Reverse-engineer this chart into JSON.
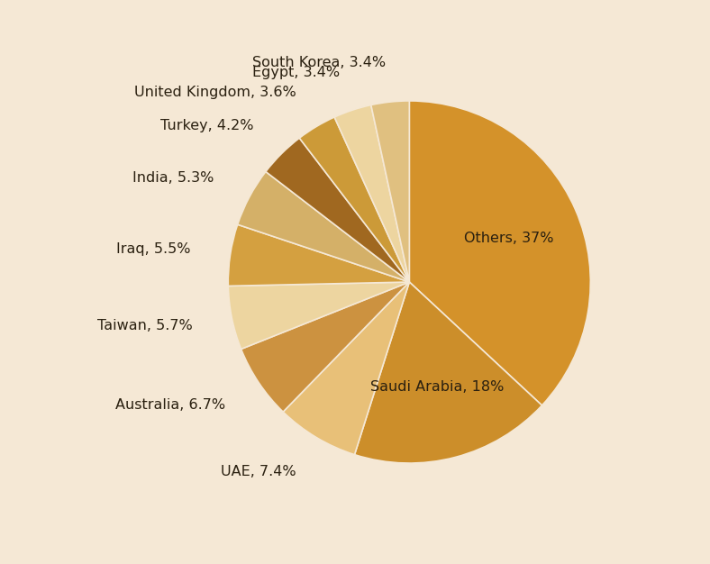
{
  "labels": [
    "Others",
    "Saudi Arabia",
    "UAE",
    "Australia",
    "Taiwan",
    "Iraq",
    "India",
    "Turkey",
    "United Kingdom",
    "Egypt",
    "South Korea"
  ],
  "values": [
    37,
    18,
    7.4,
    6.7,
    5.7,
    5.5,
    5.3,
    4.2,
    3.6,
    3.4,
    3.4
  ],
  "colors": [
    "#D4922A",
    "#CC8E2A",
    "#E8C078",
    "#CC9240",
    "#EDD5A0",
    "#D4A040",
    "#D4B068",
    "#A06820",
    "#CC9A38",
    "#EDD5A0",
    "#E0C080"
  ],
  "label_display": [
    "Others, 37%",
    "Saudi Arabia, 18%",
    "UAE, 7.4%",
    "Australia, 6.7%",
    "Taiwan, 5.7%",
    "Iraq, 5.5%",
    "India, 5.3%",
    "Turkey, 4.2%",
    "United Kingdom, 3.6%",
    "Egypt, 3.4%",
    "South Korea, 3.4%"
  ],
  "inside_labels": [
    0,
    1
  ],
  "background_color": "#F5E8D5",
  "text_color": "#2A2010",
  "figsize": [
    7.88,
    6.26
  ],
  "dpi": 100,
  "startangle": 90,
  "font_size": 11.5,
  "edge_color": "#F5E8D5",
  "edge_width": 1.2
}
